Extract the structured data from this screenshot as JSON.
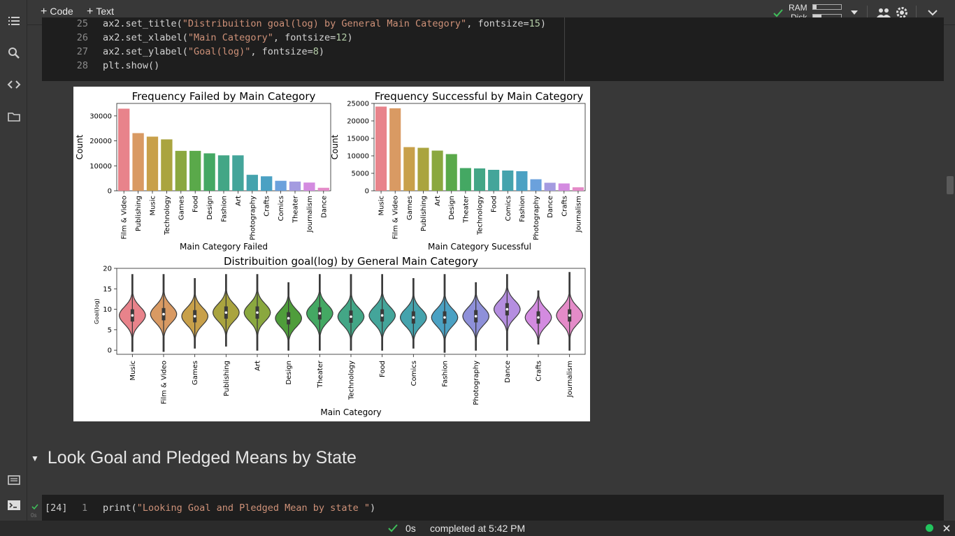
{
  "toolbar": {
    "code_label": "Code",
    "text_label": "Text",
    "ram_label": "RAM",
    "disk_label": "Disk",
    "ram_usage": 0.12,
    "disk_usage": 0.3
  },
  "code_cell": {
    "lines": [
      {
        "n": "25",
        "pre": "ax2.set_title(",
        "str": "\"Distribuition goal(log) by General Main Category\"",
        "post": ", fontsize=15)"
      },
      {
        "n": "26",
        "pre": "ax2.set_xlabel(",
        "str": "\"Main Category\"",
        "post": ", fontsize=12)"
      },
      {
        "n": "27",
        "pre": "ax2.set_ylabel(",
        "str": "\"Goal(log)\"",
        "post": ", fontsize=8)"
      },
      {
        "n": "28",
        "pre": "plt.show()",
        "str": "",
        "post": ""
      }
    ]
  },
  "section": {
    "title": "Look Goal and Pledged Means by State"
  },
  "cell2": {
    "exec_count": "[24]",
    "line_no": "1",
    "code_pre": "print(",
    "code_str": "\"Looking Goal and Pledged Mean by state \"",
    "code_post": ")",
    "run_time": "0s"
  },
  "status": {
    "time": "0s",
    "message": "completed at 5:42 PM"
  },
  "chart_data": [
    {
      "type": "bar",
      "title": "Frequency Failed by Main Category",
      "xlabel": "Main Category Failed",
      "ylabel": "Count",
      "ylim": [
        0,
        35000
      ],
      "yticks": [
        0,
        10000,
        20000,
        30000
      ],
      "categories": [
        "Film & Video",
        "Publishing",
        "Music",
        "Technology",
        "Games",
        "Food",
        "Design",
        "Fashion",
        "Art",
        "Photography",
        "Crafts",
        "Comics",
        "Theater",
        "Journalism",
        "Dance"
      ],
      "values": [
        32900,
        23100,
        21700,
        20600,
        16000,
        16000,
        15000,
        14200,
        14200,
        6400,
        5800,
        4000,
        3700,
        3300,
        1200
      ],
      "colors": [
        "#e8838b",
        "#d99a63",
        "#c8a04a",
        "#aaa43f",
        "#8aa83f",
        "#5aa94a",
        "#44a863",
        "#43a686",
        "#44a59a",
        "#45a3ad",
        "#4ba1c3",
        "#6ba1dc",
        "#a49be0",
        "#d38be0",
        "#e48bc8"
      ]
    },
    {
      "type": "bar",
      "title": "Frequency Successful by Main Category",
      "xlabel": "Main Category Sucessful",
      "ylabel": "Count",
      "ylim": [
        0,
        25000
      ],
      "yticks": [
        0,
        5000,
        10000,
        15000,
        20000,
        25000
      ],
      "categories": [
        "Music",
        "Film & Video",
        "Games",
        "Publishing",
        "Art",
        "Design",
        "Theater",
        "Technology",
        "Food",
        "Comics",
        "Fashion",
        "Photography",
        "Dance",
        "Crafts",
        "Journalism"
      ],
      "values": [
        24100,
        23600,
        12500,
        12300,
        11500,
        10500,
        6500,
        6400,
        6000,
        5800,
        5600,
        3300,
        2300,
        2100,
        1000
      ],
      "colors": [
        "#e8838b",
        "#d99a63",
        "#c8a04a",
        "#aaa43f",
        "#8aa83f",
        "#5aa94a",
        "#44a863",
        "#43a686",
        "#44a59a",
        "#45a3ad",
        "#4ba1c3",
        "#6ba1dc",
        "#a49be0",
        "#d38be0",
        "#e48bc8"
      ]
    },
    {
      "type": "violin",
      "title": "Distribuition goal(log) by General Main Category",
      "xlabel": "Main Category",
      "ylabel": "Goal(log)",
      "ylim": [
        -1,
        20
      ],
      "yticks": [
        0,
        5,
        10,
        15,
        20
      ],
      "categories": [
        "Music",
        "Film & Video",
        "Games",
        "Publishing",
        "Art",
        "Design",
        "Theater",
        "Technology",
        "Food",
        "Comics",
        "Fashion",
        "Photography",
        "Dance",
        "Crafts",
        "Journalism"
      ],
      "medians": [
        8.5,
        8.8,
        8.3,
        9.2,
        9.2,
        7.8,
        9.0,
        8.2,
        8.5,
        8.0,
        8.0,
        8.3,
        10.0,
        8.0,
        8.5
      ],
      "mins": [
        -0.3,
        -0.3,
        0.5,
        1.0,
        0.0,
        0.0,
        0.0,
        0.0,
        0.0,
        0.5,
        -0.5,
        0.0,
        0.0,
        1.5,
        0.0
      ],
      "maxs": [
        18.5,
        18.5,
        17.5,
        18.5,
        18.5,
        16.5,
        18.5,
        18.5,
        18.5,
        17.5,
        18.5,
        16.5,
        18.5,
        14.5,
        19.0
      ],
      "colors": [
        "#e8838b",
        "#d99a63",
        "#c8a04a",
        "#aaa43f",
        "#8aa83f",
        "#4f9d3b",
        "#44a863",
        "#43a686",
        "#44a59a",
        "#45a3ad",
        "#4ba1c3",
        "#8e90d9",
        "#b58ee0",
        "#d38be0",
        "#e48bc8"
      ]
    }
  ]
}
